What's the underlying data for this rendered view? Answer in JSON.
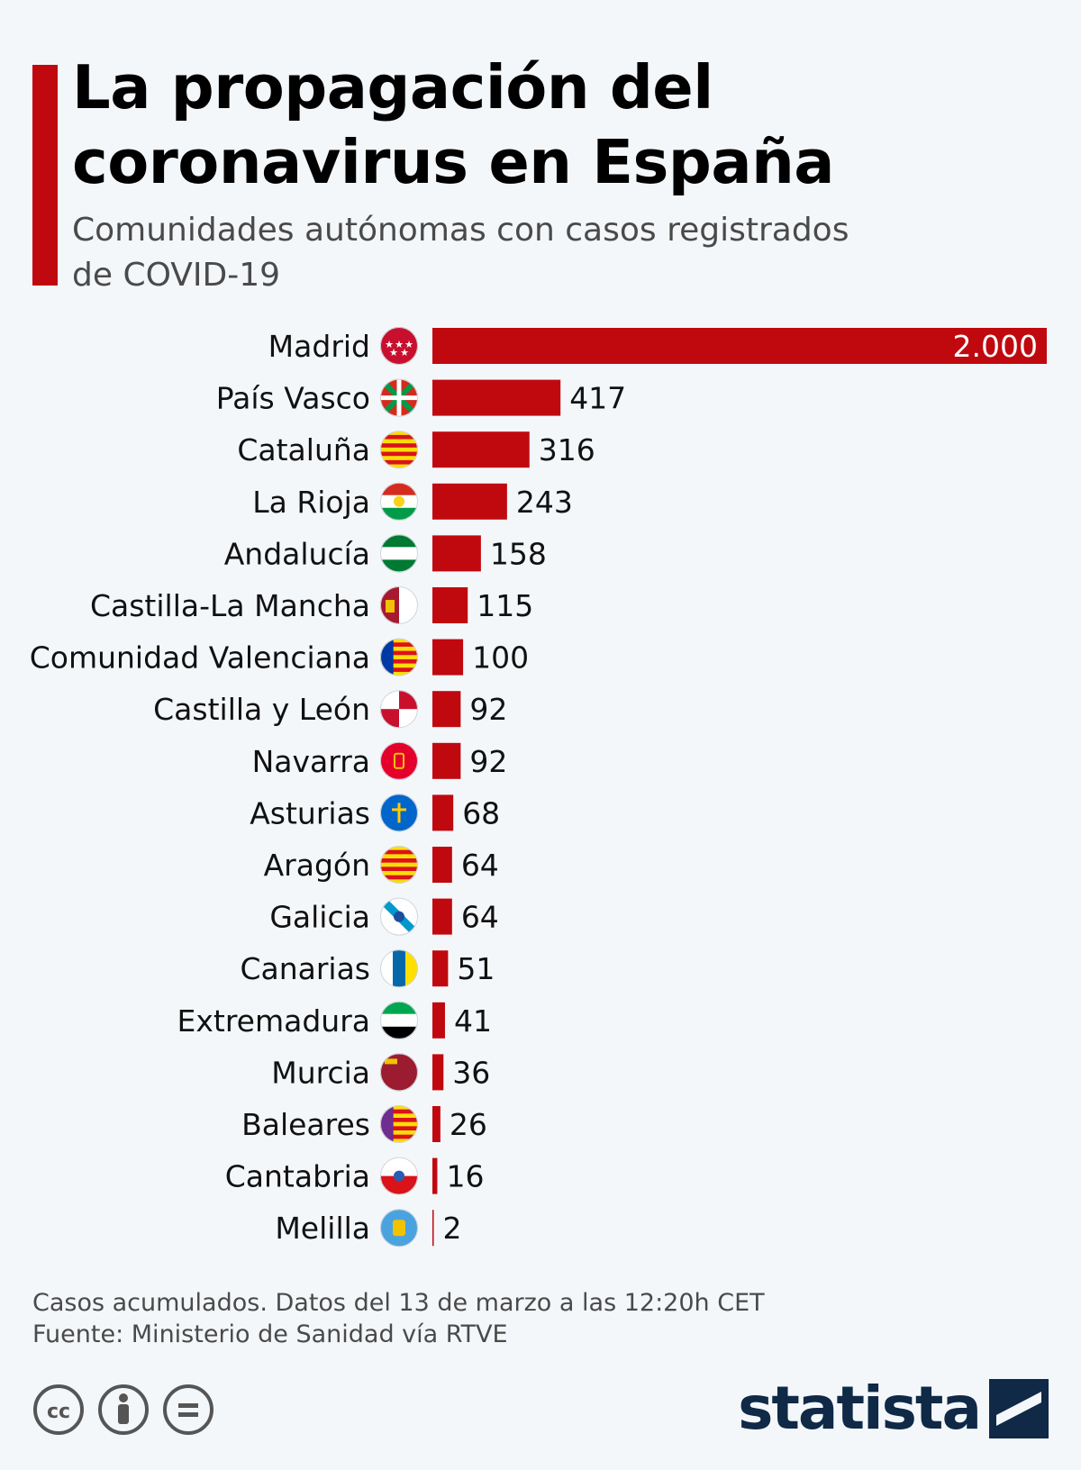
{
  "header": {
    "title": "La propagación del\ncoronavirus en España",
    "subtitle": "Comunidades autónomas con casos registrados\nde COVID-19"
  },
  "chart_data": {
    "type": "bar",
    "orientation": "horizontal",
    "title": "La propagación del coronavirus en España",
    "subtitle": "Comunidades autónomas con casos registrados de COVID-19",
    "categories": [
      "Madrid",
      "País Vasco",
      "Cataluña",
      "La Rioja",
      "Andalucía",
      "Castilla-La Mancha",
      "Comunidad Valenciana",
      "Castilla y León",
      "Navarra",
      "Asturias",
      "Aragón",
      "Galicia",
      "Canarias",
      "Extremadura",
      "Murcia",
      "Baleares",
      "Cantabria",
      "Melilla"
    ],
    "values": [
      2000,
      417,
      316,
      243,
      158,
      115,
      100,
      92,
      92,
      68,
      64,
      64,
      51,
      41,
      36,
      26,
      16,
      2
    ],
    "value_labels": [
      "2.000",
      "417",
      "316",
      "243",
      "158",
      "115",
      "100",
      "92",
      "92",
      "68",
      "64",
      "64",
      "51",
      "41",
      "36",
      "26",
      "16",
      "2"
    ],
    "xlim": [
      0,
      2000
    ],
    "bar_color": "#c0090f",
    "grid": false,
    "legend": "none"
  },
  "flags": [
    {
      "name": "madrid-flag-icon",
      "colors": [
        "#c8102e"
      ],
      "emblem": "stars"
    },
    {
      "name": "pais-vasco-flag-icon",
      "colors": [
        "#d52b1e",
        "#009b48",
        "#ffffff"
      ],
      "emblem": "ikurrina"
    },
    {
      "name": "cataluna-flag-icon",
      "colors": [
        "#fcdd09",
        "#da121a"
      ],
      "emblem": "stripes"
    },
    {
      "name": "la-rioja-flag-icon",
      "colors": [
        "#d52b1e",
        "#ffffff",
        "#009a49",
        "#fcd116"
      ],
      "emblem": "tricolor"
    },
    {
      "name": "andalucia-flag-icon",
      "colors": [
        "#007a33",
        "#ffffff"
      ],
      "emblem": "tricolor"
    },
    {
      "name": "castilla-la-mancha-flag-icon",
      "colors": [
        "#a71930",
        "#ffffff"
      ],
      "emblem": "castle"
    },
    {
      "name": "comunidad-valenciana-flag-icon",
      "colors": [
        "#fcdd09",
        "#da121a",
        "#0039a6"
      ],
      "emblem": "stripes"
    },
    {
      "name": "castilla-y-leon-flag-icon",
      "colors": [
        "#c8102e",
        "#ffffff"
      ],
      "emblem": "quartered"
    },
    {
      "name": "navarra-flag-icon",
      "colors": [
        "#e4002b",
        "#f2c200"
      ],
      "emblem": "chains"
    },
    {
      "name": "asturias-flag-icon",
      "colors": [
        "#0066cc",
        "#ffcc00"
      ],
      "emblem": "cross"
    },
    {
      "name": "aragon-flag-icon",
      "colors": [
        "#fcdd09",
        "#da121a"
      ],
      "emblem": "stripes"
    },
    {
      "name": "galicia-flag-icon",
      "colors": [
        "#ffffff",
        "#0099cc"
      ],
      "emblem": "diagonal"
    },
    {
      "name": "canarias-flag-icon",
      "colors": [
        "#ffffff",
        "#0768a9",
        "#fedf00"
      ],
      "emblem": "tricolor-vertical"
    },
    {
      "name": "extremadura-flag-icon",
      "colors": [
        "#00a650",
        "#ffffff",
        "#000000"
      ],
      "emblem": "tricolor"
    },
    {
      "name": "murcia-flag-icon",
      "colors": [
        "#9b1b30",
        "#f2c200"
      ],
      "emblem": "castles"
    },
    {
      "name": "baleares-flag-icon",
      "colors": [
        "#fcdd09",
        "#da121a",
        "#6f2c91"
      ],
      "emblem": "stripes"
    },
    {
      "name": "cantabria-flag-icon",
      "colors": [
        "#ffffff",
        "#da121a"
      ],
      "emblem": "bicolor"
    },
    {
      "name": "melilla-flag-icon",
      "colors": [
        "#4aa3df",
        "#f2c200"
      ],
      "emblem": "shield"
    }
  ],
  "footer": {
    "note": "Casos acumulados. Datos del 13 de marzo a las 12:20h CET",
    "source": "Fuente: Ministerio de Sanidad vía RTVE",
    "license_icons": [
      "cc-icon",
      "attribution-icon",
      "no-derivatives-icon"
    ],
    "brand": "statista"
  }
}
